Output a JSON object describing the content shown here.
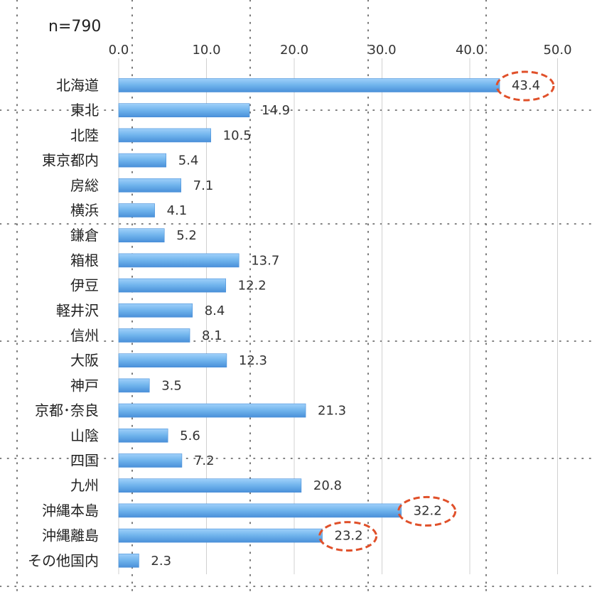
{
  "chart_data": {
    "type": "bar",
    "orientation": "horizontal",
    "sample_label": "n=790",
    "categories": [
      "北海道",
      "東北",
      "北陸",
      "東京都内",
      "房総",
      "横浜",
      "鎌倉",
      "箱根",
      "伊豆",
      "軽井沢",
      "信州",
      "大阪",
      "神戸",
      "京都･奈良",
      "山陰",
      "四国",
      "九州",
      "沖縄本島",
      "沖縄離島",
      "その他国内"
    ],
    "values": [
      43.4,
      14.9,
      10.5,
      5.4,
      7.1,
      4.1,
      5.2,
      13.7,
      12.2,
      8.4,
      8.1,
      12.3,
      3.5,
      21.3,
      5.6,
      7.2,
      20.8,
      32.2,
      23.2,
      2.3
    ],
    "value_labels": [
      "43.4",
      "14.9",
      "10.5",
      "5.4",
      "7.1",
      "4.1",
      "5.2",
      "13.7",
      "12.2",
      "8.4",
      "8.1",
      "12.3",
      "3.5",
      "21.3",
      "5.6",
      "7.2",
      "20.8",
      "32.2",
      "23.2",
      "2.3"
    ],
    "xlim": [
      0,
      50
    ],
    "xticks": [
      "0.0",
      "10.0",
      "20.0",
      "30.0",
      "40.0",
      "50.0"
    ],
    "xtick_values": [
      0,
      10,
      20,
      30,
      40,
      50
    ],
    "axis_position": "top",
    "grid": true,
    "highlighted": [
      "北海道",
      "沖縄本島",
      "沖縄離島"
    ],
    "colors": {
      "bar": "#6fb3ec",
      "bar_edge": "#4a90d9",
      "highlight": "#e0502a",
      "grid": "#d0d0d0"
    }
  }
}
